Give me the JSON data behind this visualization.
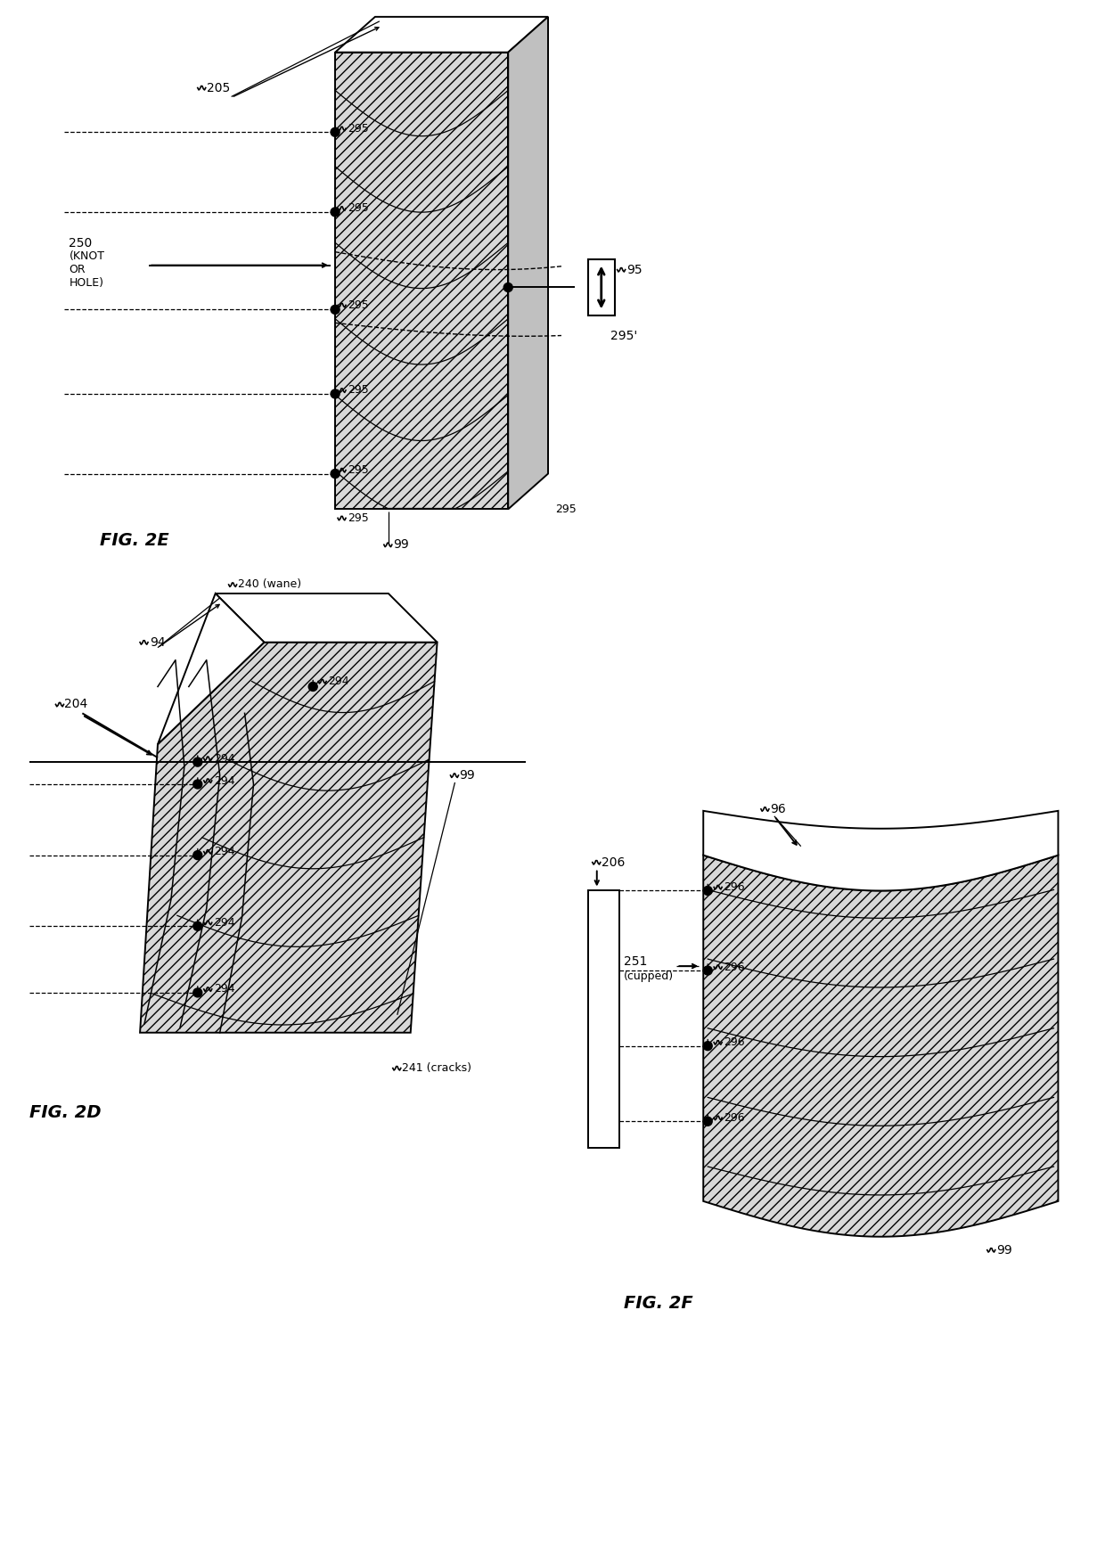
{
  "bg_color": "#ffffff",
  "fig_width": 12.4,
  "fig_height": 17.55,
  "fig2e_label": "FIG. 2E",
  "fig2d_label": "FIG. 2D",
  "fig2f_label": "FIG. 2F",
  "lw": 1.4
}
